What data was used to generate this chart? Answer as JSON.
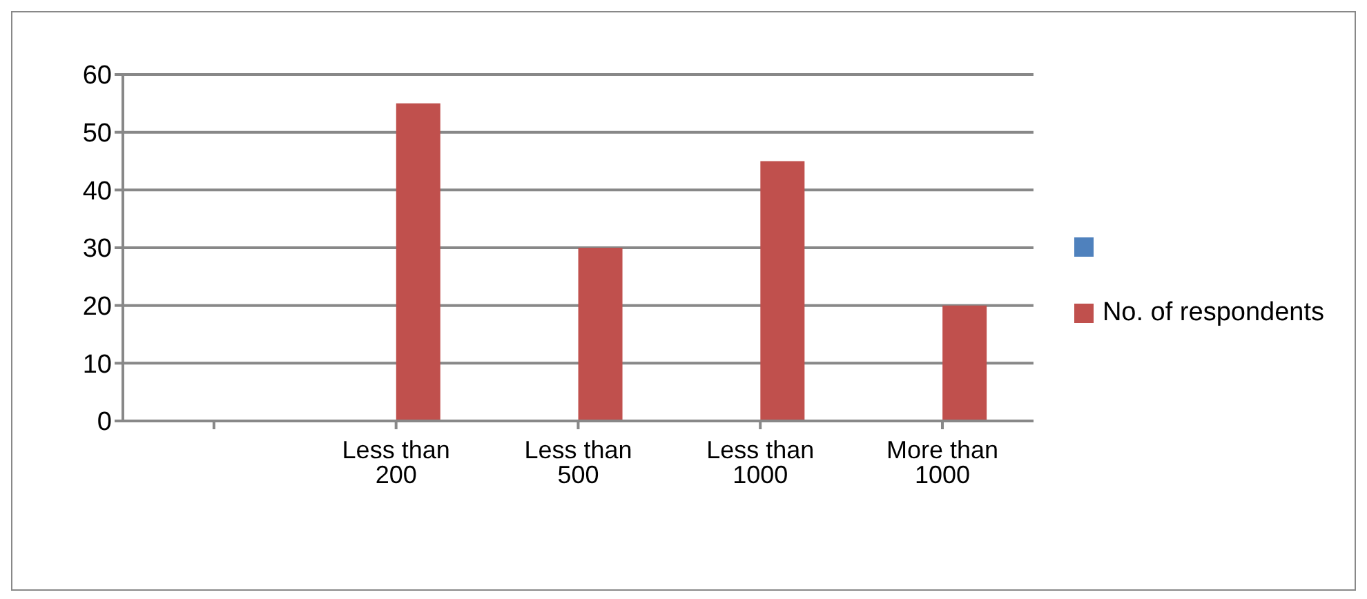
{
  "chart_data": {
    "type": "bar",
    "categories": [
      null,
      "Less than 200",
      "Less than 500",
      "Less than 1000",
      "More than 1000"
    ],
    "series": [
      {
        "color": "#4f81bd",
        "values": [
          null,
          null,
          null,
          null,
          null
        ]
      },
      {
        "name": "No. of respondents",
        "color": "#c0504d",
        "values": [
          null,
          55,
          30,
          45,
          20
        ]
      }
    ],
    "ylim": [
      0,
      60
    ],
    "yticks": [
      0,
      10,
      20,
      30,
      40,
      50,
      60
    ],
    "grid": "y",
    "legend": "right"
  }
}
